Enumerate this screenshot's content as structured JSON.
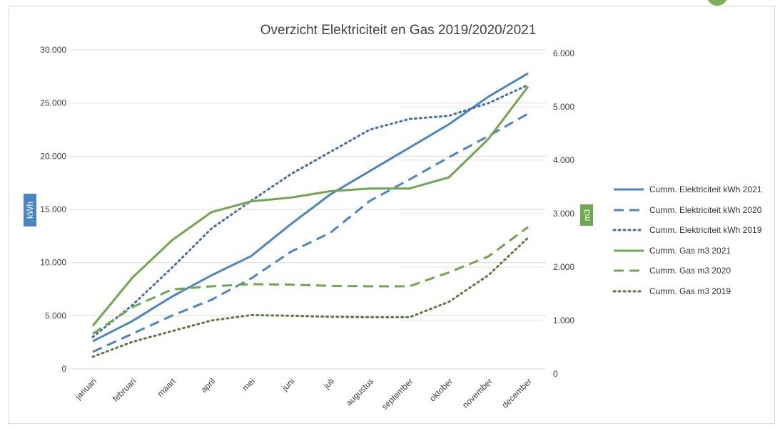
{
  "chart_data": {
    "type": "line",
    "title": "Overzicht Elektriciteit en Gas 2019/2020/2021",
    "categories": [
      "januari",
      "februari",
      "maart",
      "april",
      "mei",
      "juni",
      "juli",
      "augustus",
      "september",
      "oktober",
      "november",
      "december"
    ],
    "y_left": {
      "label": "kWh",
      "ylim": [
        0,
        30000
      ],
      "ticks": [
        "0",
        "5.000",
        "10.000",
        "15.000",
        "20.000",
        "25.000",
        "30.000"
      ]
    },
    "y_right": {
      "label": "m3",
      "ylim": [
        0,
        6000
      ],
      "ticks": [
        "0",
        "1.000",
        "2.000",
        "3.000",
        "4.000",
        "5.000",
        "6.000"
      ]
    },
    "grid": true,
    "legend_position": "right",
    "series": [
      {
        "name": "Cumm. Elektriciteit kWh 2021",
        "axis": "left",
        "color": "#4a86c5",
        "dash": "solid",
        "values": [
          2600,
          4500,
          6800,
          8800,
          10600,
          13600,
          16400,
          18600,
          20800,
          23000,
          25600,
          27800
        ]
      },
      {
        "name": "Cumm. Elektriciteit kWh 2020",
        "axis": "left",
        "color": "#4a86c5",
        "dash": "dash",
        "values": [
          1600,
          3300,
          5000,
          6500,
          8500,
          11000,
          12800,
          15800,
          17800,
          19900,
          21900,
          24000
        ]
      },
      {
        "name": "Cumm. Elektriciteit kWh 2019",
        "axis": "left",
        "color": "#3f6fb0",
        "dash": "dot",
        "values": [
          3000,
          6000,
          9500,
          13200,
          15800,
          18300,
          20400,
          22500,
          23500,
          23800,
          25000,
          26700
        ]
      },
      {
        "name": "Cumm. Gas m3 2021",
        "axis": "right",
        "color": "#6fa84c",
        "dash": "solid",
        "values": [
          900,
          1800,
          2500,
          3030,
          3230,
          3300,
          3420,
          3470,
          3470,
          3680,
          4400,
          5380
        ]
      },
      {
        "name": "Cumm. Gas m3 2020",
        "axis": "right",
        "color": "#6fa84c",
        "dash": "dash",
        "values": [
          750,
          1250,
          1580,
          1640,
          1680,
          1670,
          1650,
          1640,
          1640,
          1900,
          2200,
          2750
        ]
      },
      {
        "name": "Cumm. Gas m3 2019",
        "axis": "right",
        "color": "#5a7a3a",
        "dash": "dot",
        "values": [
          320,
          600,
          800,
          1000,
          1100,
          1090,
          1070,
          1060,
          1060,
          1350,
          1850,
          2550
        ]
      }
    ]
  }
}
